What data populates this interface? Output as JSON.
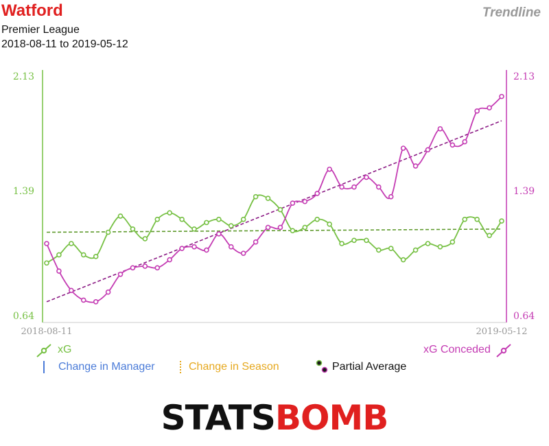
{
  "header": {
    "team": "Watford",
    "competition": "Premier League",
    "date_range": "2018-08-11 to 2019-05-12",
    "view_label": "Trendline"
  },
  "legend": {
    "xg": "xG",
    "xg_conceded": "xG Conceded",
    "change_manager": "Change in Manager",
    "change_season": "Change in Season",
    "partial_average": "Partial Average"
  },
  "brand": {
    "part1": "STATS",
    "part2": "BOMB"
  },
  "colors": {
    "xg": "#76c043",
    "xg_conceded": "#c43bb3",
    "xg_trend": "#5f9a2d",
    "xgc_trend": "#8b1a84",
    "manager": "#4a7bd8",
    "season": "#e6a81e",
    "brand_red": "#e0201f"
  },
  "chart_data": {
    "type": "line",
    "x_start_label": "2018-08-11",
    "x_end_label": "2019-05-12",
    "ylim": [
      0.64,
      2.13
    ],
    "yticks_left": [
      "0.64",
      "1.39",
      "2.13"
    ],
    "yticks_right": [
      "0.64",
      "1.39",
      "2.13"
    ],
    "series": [
      {
        "name": "xG",
        "values": [
          0.97,
          1.02,
          1.09,
          1.02,
          1.01,
          1.16,
          1.26,
          1.18,
          1.12,
          1.24,
          1.28,
          1.24,
          1.18,
          1.22,
          1.24,
          1.2,
          1.24,
          1.38,
          1.37,
          1.3,
          1.17,
          1.19,
          1.24,
          1.21,
          1.09,
          1.11,
          1.11,
          1.05,
          1.06,
          0.99,
          1.05,
          1.09,
          1.07,
          1.1,
          1.24,
          1.24,
          1.14,
          1.23
        ]
      },
      {
        "name": "xG Conceded",
        "values": [
          1.09,
          0.92,
          0.8,
          0.74,
          0.73,
          0.79,
          0.9,
          0.94,
          0.95,
          0.94,
          0.99,
          1.06,
          1.07,
          1.05,
          1.15,
          1.07,
          1.03,
          1.1,
          1.19,
          1.19,
          1.34,
          1.35,
          1.4,
          1.55,
          1.44,
          1.44,
          1.5,
          1.44,
          1.38,
          1.68,
          1.57,
          1.67,
          1.8,
          1.7,
          1.72,
          1.91,
          1.93,
          2.0
        ]
      }
    ],
    "trendlines": [
      {
        "series": "xG",
        "start": 1.16,
        "end": 1.18
      },
      {
        "series": "xG Conceded",
        "start": 0.73,
        "end": 1.85
      }
    ]
  }
}
